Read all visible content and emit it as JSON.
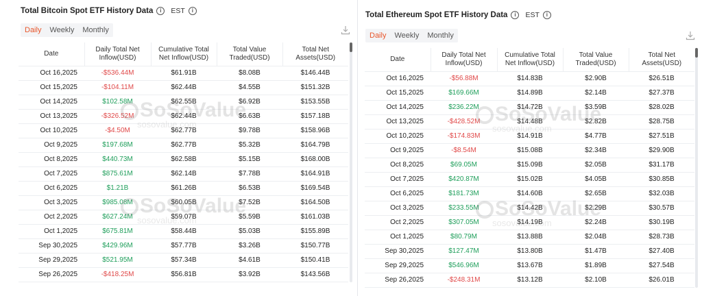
{
  "btc": {
    "title": "Total Bitcoin Spot ETF History Data",
    "timezone": "EST",
    "tabs": [
      "Daily",
      "Weekly",
      "Monthly"
    ],
    "active_tab": 0,
    "headers": [
      "Date",
      "Daily Total Net Inflow(USD)",
      "Cumulative Total Net Inflow(USD)",
      "Total Value Traded(USD)",
      "Total Net Assets(USD)"
    ],
    "rows": [
      [
        "Oct 16,2025",
        "-$536.44M",
        "$61.91B",
        "$8.08B",
        "$146.44B"
      ],
      [
        "Oct 15,2025",
        "-$104.11M",
        "$62.44B",
        "$4.55B",
        "$151.32B"
      ],
      [
        "Oct 14,2025",
        "$102.58M",
        "$62.55B",
        "$6.92B",
        "$153.55B"
      ],
      [
        "Oct 13,2025",
        "-$326.52M",
        "$62.44B",
        "$6.63B",
        "$157.18B"
      ],
      [
        "Oct 10,2025",
        "-$4.50M",
        "$62.77B",
        "$9.78B",
        "$158.96B"
      ],
      [
        "Oct 9,2025",
        "$197.68M",
        "$62.77B",
        "$5.32B",
        "$164.79B"
      ],
      [
        "Oct 8,2025",
        "$440.73M",
        "$62.58B",
        "$5.15B",
        "$168.00B"
      ],
      [
        "Oct 7,2025",
        "$875.61M",
        "$62.14B",
        "$7.78B",
        "$164.91B"
      ],
      [
        "Oct 6,2025",
        "$1.21B",
        "$61.26B",
        "$6.53B",
        "$169.54B"
      ],
      [
        "Oct 3,2025",
        "$985.08M",
        "$60.05B",
        "$7.52B",
        "$164.50B"
      ],
      [
        "Oct 2,2025",
        "$627.24M",
        "$59.07B",
        "$5.59B",
        "$161.03B"
      ],
      [
        "Oct 1,2025",
        "$675.81M",
        "$58.44B",
        "$5.03B",
        "$155.89B"
      ],
      [
        "Sep 30,2025",
        "$429.96M",
        "$57.77B",
        "$3.26B",
        "$150.77B"
      ],
      [
        "Sep 29,2025",
        "$521.95M",
        "$57.34B",
        "$4.61B",
        "$150.41B"
      ],
      [
        "Sep 26,2025",
        "-$418.25M",
        "$56.81B",
        "$3.92B",
        "$143.56B"
      ]
    ]
  },
  "eth": {
    "title": "Total Ethereum Spot ETF History Data",
    "timezone": "EST",
    "tabs": [
      "Daily",
      "Weekly",
      "Monthly"
    ],
    "active_tab": 0,
    "headers": [
      "Date",
      "Daily Total Net Inflow(USD)",
      "Cumulative Total Net Inflow(USD)",
      "Total Value Traded(USD)",
      "Total Net Assets(USD)"
    ],
    "rows": [
      [
        "Oct 16,2025",
        "-$56.88M",
        "$14.83B",
        "$2.90B",
        "$26.51B"
      ],
      [
        "Oct 15,2025",
        "$169.66M",
        "$14.89B",
        "$2.14B",
        "$27.37B"
      ],
      [
        "Oct 14,2025",
        "$236.22M",
        "$14.72B",
        "$3.59B",
        "$28.02B"
      ],
      [
        "Oct 13,2025",
        "-$428.52M",
        "$14.48B",
        "$2.82B",
        "$28.75B"
      ],
      [
        "Oct 10,2025",
        "-$174.83M",
        "$14.91B",
        "$4.77B",
        "$27.51B"
      ],
      [
        "Oct 9,2025",
        "-$8.54M",
        "$15.08B",
        "$2.34B",
        "$29.90B"
      ],
      [
        "Oct 8,2025",
        "$69.05M",
        "$15.09B",
        "$2.05B",
        "$31.17B"
      ],
      [
        "Oct 7,2025",
        "$420.87M",
        "$15.02B",
        "$4.05B",
        "$30.85B"
      ],
      [
        "Oct 6,2025",
        "$181.73M",
        "$14.60B",
        "$2.65B",
        "$32.03B"
      ],
      [
        "Oct 3,2025",
        "$233.55M",
        "$14.42B",
        "$2.29B",
        "$30.57B"
      ],
      [
        "Oct 2,2025",
        "$307.05M",
        "$14.19B",
        "$2.24B",
        "$30.19B"
      ],
      [
        "Oct 1,2025",
        "$80.79M",
        "$13.88B",
        "$2.04B",
        "$28.73B"
      ],
      [
        "Sep 30,2025",
        "$127.47M",
        "$13.80B",
        "$1.47B",
        "$27.40B"
      ],
      [
        "Sep 29,2025",
        "$546.96M",
        "$13.67B",
        "$1.89B",
        "$27.54B"
      ],
      [
        "Sep 26,2025",
        "-$248.31M",
        "$13.12B",
        "$2.10B",
        "$26.01B"
      ]
    ]
  },
  "watermark": {
    "brand": "SoSoValue",
    "domain": "sosovalue.com"
  },
  "icons": {
    "info": "info-icon",
    "download": "download-icon"
  },
  "colors": {
    "accent": "#e8552a",
    "positive": "#1e9e5a",
    "negative": "#e04848"
  }
}
